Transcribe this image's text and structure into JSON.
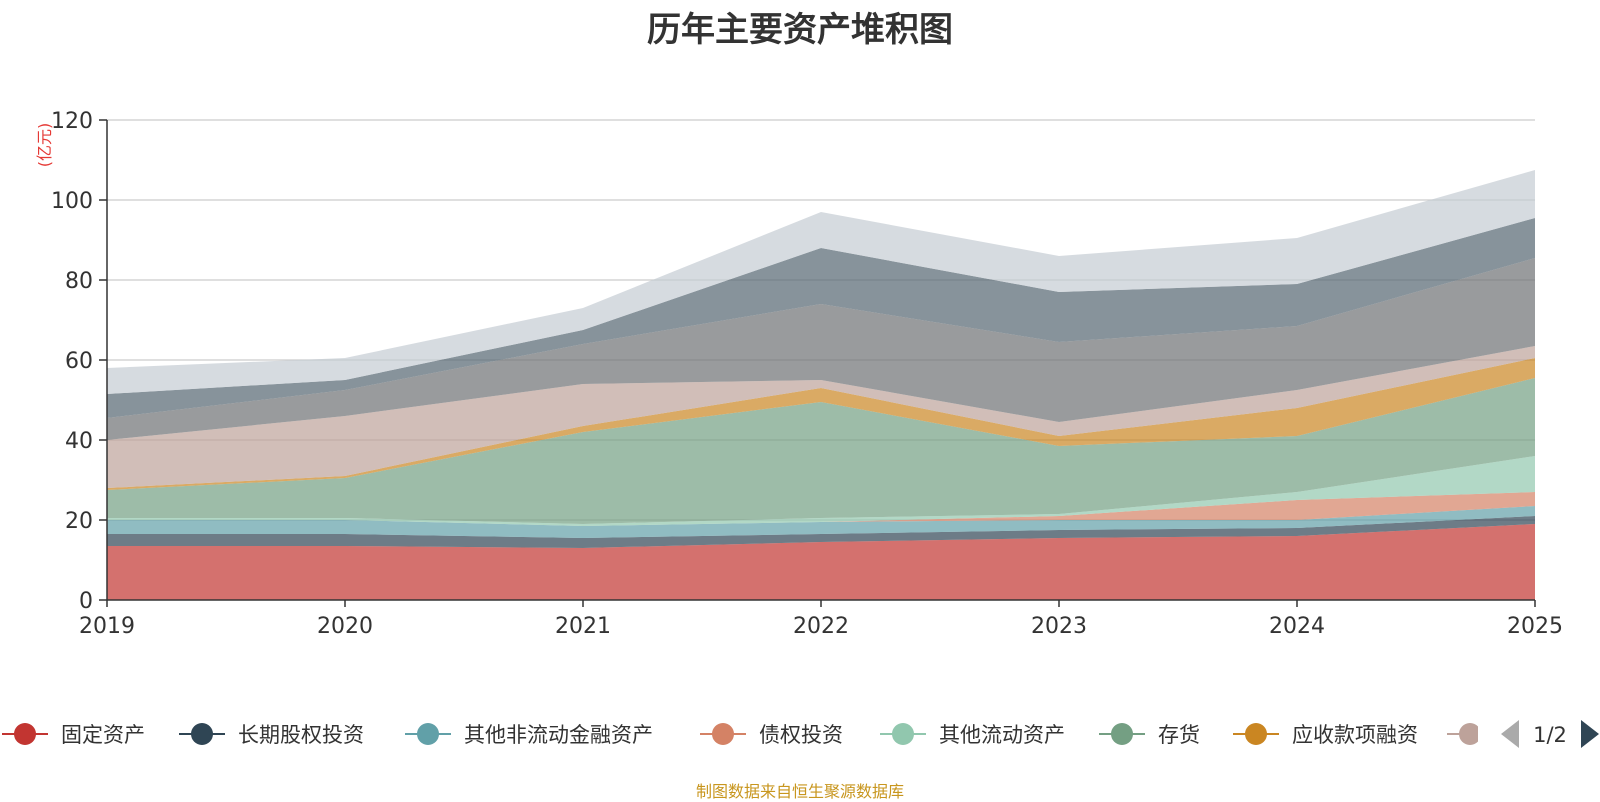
{
  "chart_data": {
    "type": "area",
    "title": "历年主要资产堆积图",
    "ylabel": "(亿元)",
    "xlabel": "",
    "stacked": true,
    "x": [
      "2019",
      "2020",
      "2021",
      "2022",
      "2023",
      "2024",
      "2025"
    ],
    "ylim": [
      0,
      120
    ],
    "yticks": [
      0,
      20,
      40,
      60,
      80,
      100,
      120
    ],
    "grid": true,
    "legend_position": "bottom",
    "legend_page": "1/2",
    "series": [
      {
        "name": "固定资产",
        "color": "#c23531",
        "values": [
          13.5,
          13.5,
          13.0,
          14.5,
          15.5,
          16.0,
          19.0
        ]
      },
      {
        "name": "长期股权投资",
        "color": "#2f4554",
        "values": [
          3.0,
          3.0,
          2.5,
          2.0,
          2.0,
          2.0,
          2.0
        ]
      },
      {
        "name": "其他非流动金融资产",
        "color": "#61a0a8",
        "values": [
          3.5,
          3.5,
          3.0,
          3.0,
          2.5,
          2.0,
          2.5
        ]
      },
      {
        "name": "债权投资",
        "color": "#d48265",
        "values": [
          0,
          0,
          0,
          0,
          1.0,
          5.0,
          3.5
        ]
      },
      {
        "name": "其他流动资产",
        "color": "#91c7ae",
        "values": [
          0.5,
          0.5,
          0.5,
          1.0,
          0.5,
          2.0,
          9.0
        ]
      },
      {
        "name": "存货",
        "color": "#749f83",
        "values": [
          7.0,
          10.0,
          23.0,
          29.0,
          17.0,
          14.0,
          19.5
        ]
      },
      {
        "name": "应收款项融资",
        "color": "#ca8622",
        "values": [
          0.5,
          0.5,
          1.5,
          3.5,
          2.5,
          7.0,
          5.0
        ]
      },
      {
        "name": "",
        "color": "#bda29a",
        "values": [
          12.0,
          15.0,
          10.5,
          2.0,
          3.5,
          4.5,
          3.0
        ]
      },
      {
        "name": "",
        "color": "#6e7074",
        "values": [
          5.5,
          6.5,
          10.0,
          19.0,
          20.0,
          16.0,
          22.0
        ]
      },
      {
        "name": "",
        "color": "#546570",
        "values": [
          6.0,
          2.5,
          3.5,
          14.0,
          12.5,
          10.5,
          10.0
        ]
      },
      {
        "name": "",
        "color": "#c4ccd3",
        "values": [
          6.5,
          5.5,
          5.5,
          9.0,
          9.0,
          11.5,
          12.0
        ]
      }
    ]
  },
  "footer": {
    "source_note": "制图数据来自恒生聚源数据库"
  },
  "legend_nav": {
    "prev_icon": "triangle-left-icon",
    "next_icon": "triangle-right-icon"
  }
}
